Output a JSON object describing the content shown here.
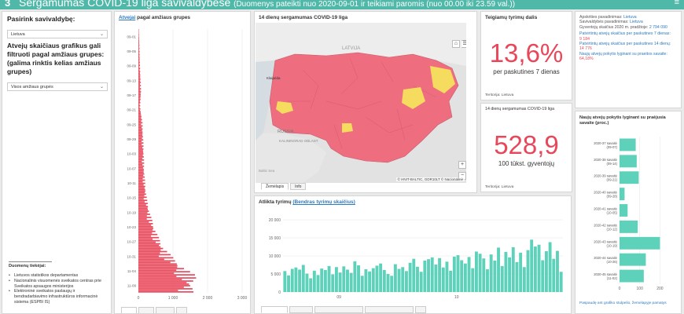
{
  "header": {
    "logo": "3",
    "title": "Sergamumas COVID-19 liga savivaldybėse",
    "subtitle": "(Duomenys pateikti nuo 2020-09-01 ir teikiami paromis (nuo 00.00 iki 23.59 val.))",
    "menu_icon": "≡"
  },
  "sidebar": {
    "choose_label": "Pasirink savivaldybę:",
    "municipality_value": "Lietuva",
    "filter_label": "Atvejų skaičiaus grafikus gali filtruoti pagal amžiaus grupes: (galima rinktis kelias amžiaus grupes)",
    "age_value": "Visos amžiaus grupės",
    "sources_title": "Duomenų tiekėjai:",
    "sources": [
      "Lietuvos statistikos departamentas",
      "Nacionalinis visuomenės sveikatos centras prie Sveikatos apsaugos ministerijos",
      "Elektroninė sveikatos paslaugų ir bendradarbiavimo infrastruktūros informacinė sistema (ESPBI IS)"
    ]
  },
  "age_panel": {
    "title_link": "Atvejai",
    "title_rest": " pagal amžiaus grupes",
    "tabs": [
      "",
      "",
      "",
      ""
    ]
  },
  "map_panel": {
    "title": "14 dienų sergamumas COVID-19 liga",
    "labels": {
      "latvia": "LATVIJA",
      "russia": "RUSSIA",
      "kaliningrad": "KALININGRAD OBLAST",
      "baltic": "Baltic Sea",
      "klaipeda": "Klaipėda"
    },
    "attribution": "© HNIT-BALTIC, GDR10LT © Nacionalinė",
    "tabs": [
      "Žemėlapis",
      "Info"
    ],
    "zoom_in": "+",
    "zoom_out": "−"
  },
  "positive_panel": {
    "title": "Teigiamų tyrimų dalis",
    "value": "13,6%",
    "subtitle": "per paskutines 7 dienas",
    "territory": "Teritorija: Lietuva"
  },
  "incidence_panel": {
    "title": "14 dienų sergamumas COVID-19 liga",
    "value": "528,9",
    "subtitle": "100 tūkst. gyventojų",
    "territory": "Teritorija: Lietuva"
  },
  "info_panel": {
    "county_label": "Apskrities pavadinimas:",
    "county_value": "Lietuva",
    "muni_label": "Savivaldybės pavadinimas:",
    "muni_value": "Lietuva",
    "pop_label": "Gyventojų skaičius 2020 m. pradžioje:",
    "pop_value": "2 794 090",
    "conf7_label": "Patvirtintų atvejų skaičius per paskutines 7 dienas:",
    "conf7_value": "9 184",
    "conf14_label": "Patvirtintų atvejų skaičius per paskutines 14 dienų:",
    "conf14_value": "14 776",
    "change_label": "Naujų atvejų pokytis lyginant su praeitos savaite:",
    "change_value": "64,18%"
  },
  "tests_panel": {
    "title_plain": "Atlikta tyrimų ",
    "title_link": "(Bendras tyrimų skaičius)",
    "tabs": [
      "",
      "",
      "",
      "",
      ""
    ]
  },
  "weekly_panel": {
    "title": "Naujų atvejų pokytis lyginant su praėjusia savaite (proc.)",
    "link": "Paspaudę ant grafiko stulpelio, žemėlapyje pamatys"
  },
  "colors": {
    "header": "#4fb8a8",
    "pink": "#e8475a",
    "map_pink": "#ee6e80",
    "teal": "#5ed1bb",
    "yellow": "#f6dc5e",
    "blue_link": "#2d7ac0"
  },
  "chart_data": [
    {
      "type": "bar",
      "orientation": "horizontal",
      "title": "Atvejai pagal amžiaus grupes",
      "categories": [
        "09-01",
        "09-05",
        "09-09",
        "09-13",
        "09-17",
        "09-21",
        "09-25",
        "09-29",
        "10-03",
        "10-07",
        "10-11",
        "10-15",
        "10-19",
        "10-23",
        "10-27",
        "10-31",
        "11-04",
        "11-08"
      ],
      "values": [
        10,
        30,
        40,
        60,
        80,
        50,
        120,
        140,
        160,
        170,
        200,
        250,
        350,
        500,
        700,
        1100,
        1700,
        1600
      ],
      "x_ticks": [
        "0",
        "1 000",
        "2 000",
        "3 000"
      ],
      "xlim": [
        0,
        3000
      ],
      "grid": true
    },
    {
      "type": "bar",
      "title": "Atlikta tyrimų",
      "x_ticks": [
        "09",
        "10"
      ],
      "y_ticks": [
        "0",
        "5 000",
        "10 000",
        "15 000",
        "20 000"
      ],
      "ylim": [
        0,
        20000
      ],
      "values": [
        5800,
        4600,
        6400,
        6800,
        6200,
        7500,
        5100,
        3800,
        5900,
        4700,
        6500,
        6100,
        7200,
        4900,
        6900,
        5400,
        7100,
        6200,
        5300,
        8500,
        7400,
        4500,
        6300,
        5700,
        6600,
        7300,
        7900,
        6100,
        5000,
        4500,
        7700,
        6400,
        6900,
        5800,
        8100,
        9200,
        7000,
        5600,
        8700,
        9100,
        9600,
        7600,
        9400,
        6800,
        8400,
        5900,
        9800,
        10200,
        8800,
        7900,
        9700,
        6600,
        11200,
        10600,
        9300,
        6300,
        10400,
        8700,
        12300,
        7200,
        11100,
        9600,
        12400,
        8300,
        10900,
        6900,
        11600,
        14500,
        12600,
        13100,
        8800,
        11300,
        13800,
        9200,
        11400,
        5600
      ],
      "grid": true
    },
    {
      "type": "bar",
      "orientation": "horizontal",
      "title": "Naujų atvejų pokytis lyginant su praėjusia savaite (proc.)",
      "categories": [
        "2020-37 savaitė (09-07)",
        "2020-38 savaitė (09-14)",
        "2020-39 savaitė (09-21)",
        "2020-40 savaitė (09-28)",
        "2020-41 savaitė (10-05)",
        "2020-42 savaitė (10-12)",
        "2020-43 savaitė (10-19)",
        "2020-44 savaitė (10-26)",
        "2020-45 savaitė (11-02)"
      ],
      "values": [
        80,
        85,
        95,
        25,
        40,
        90,
        200,
        130,
        120
      ],
      "x_ticks": [
        "0",
        "100",
        "200"
      ],
      "xlim": [
        0,
        280
      ]
    }
  ]
}
